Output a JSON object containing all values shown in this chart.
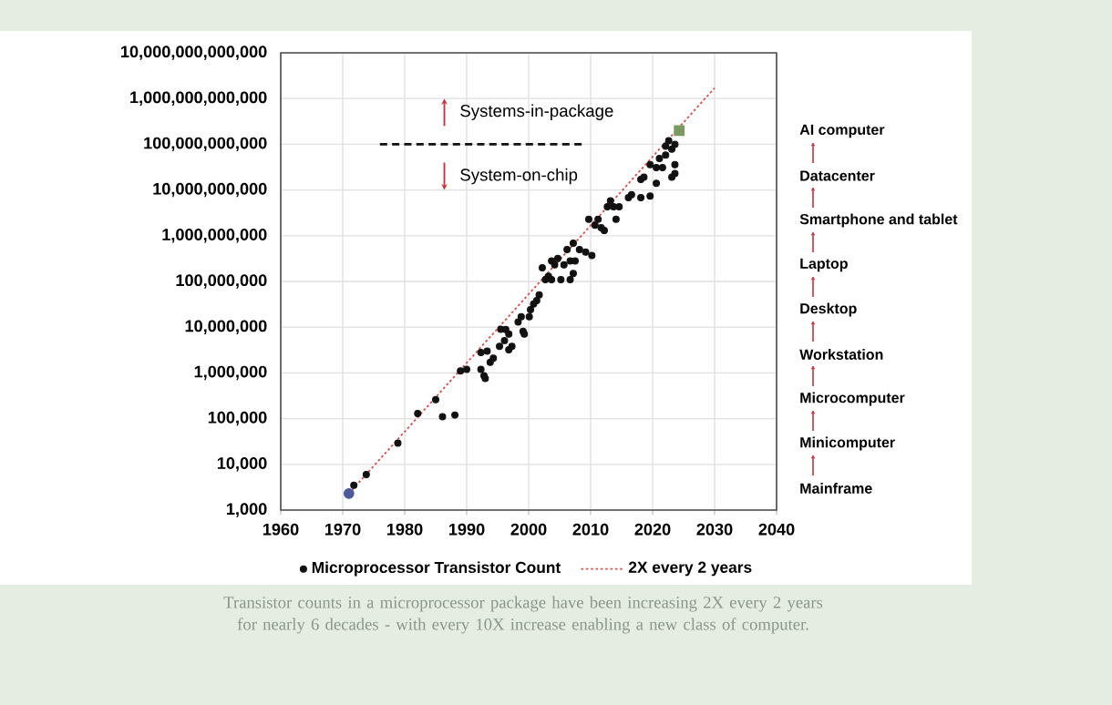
{
  "chart_data": {
    "type": "scatter",
    "log": "y",
    "grid": true,
    "legend": "bottom",
    "xlim": [
      1960,
      2040
    ],
    "ylim": [
      1000,
      10000000000000
    ],
    "xticks": [
      1960,
      1970,
      1980,
      1990,
      2000,
      2010,
      2020,
      2030,
      2040
    ],
    "yticks": [
      {
        "value": 1000,
        "label": "1,000"
      },
      {
        "value": 10000,
        "label": "10,000"
      },
      {
        "value": 100000,
        "label": "100,000"
      },
      {
        "value": 1000000,
        "label": "1,000,000"
      },
      {
        "value": 10000000,
        "label": "10,000,000"
      },
      {
        "value": 100000000,
        "label": "100,000,000"
      },
      {
        "value": 1000000000,
        "label": "1,000,000,000"
      },
      {
        "value": 10000000000,
        "label": "10,000,000,000"
      },
      {
        "value": 100000000000,
        "label": "100,000,000,000"
      },
      {
        "value": 1000000000000,
        "label": "1,000,000,000,000"
      },
      {
        "value": 10000000000000,
        "label": "10,000,000,000,000"
      }
    ],
    "series": [
      {
        "name": "Microprocessor Transistor Count",
        "color": "#111111",
        "marker": "circle",
        "x": [
          1971.8,
          1973.8,
          1978.9,
          1982.1,
          1985,
          1986.1,
          1988.1,
          1989,
          1990,
          1992.3,
          1992.8,
          1993,
          1992.3,
          1993.3,
          1993.8,
          1994.3,
          1995.3,
          1995.5,
          1996.3,
          1996.8,
          1997.3,
          1996.8,
          1996.1,
          1998.3,
          1999.1,
          1999.3,
          1998.8,
          2000.3,
          2000.8,
          2001.3,
          2000.1,
          2001.7,
          2002.2,
          2002.7,
          2003.2,
          2003.7,
          2003.7,
          2004.2,
          2004.7,
          2005.2,
          2005.7,
          2006.2,
          2006.7,
          2007.2,
          2006.7,
          2007.2,
          2007.5,
          2008.2,
          2009.2,
          2009.7,
          2010.2,
          2010.7,
          2011.2,
          2011.7,
          2012.2,
          2012.7,
          2013.2,
          2013.7,
          2014.1,
          2014.6,
          2016.1,
          2016.6,
          2018.1,
          2018.6,
          2018.1,
          2019.6,
          2019.6,
          2020.6,
          2020.6,
          2021.1,
          2021.6,
          2022.1,
          2022.1,
          2022.6,
          2023.1,
          2023.1,
          2023.6,
          2023.6,
          2023.6
        ],
        "values": [
          3500,
          6000,
          29000,
          130000,
          260000,
          110000,
          120000,
          1100000,
          1200000,
          1200000,
          870000,
          760000,
          2800000,
          3000000,
          1700000,
          2100000,
          3800000,
          9000000,
          8900000,
          7100000,
          3800000,
          3200000,
          5100000,
          13000000,
          8100000,
          7100000,
          17000000,
          24000000,
          32000000,
          38000000,
          17000000,
          51000000,
          200000000,
          110000000,
          130000000,
          280000000,
          110000000,
          230000000,
          320000000,
          110000000,
          230000000,
          500000000,
          280000000,
          690000000,
          110000000,
          150000000,
          280000000,
          500000000,
          440000000,
          2300000000,
          370000000,
          1700000000,
          2300000000,
          1500000000,
          1300000000,
          4300000000,
          5800000000,
          4300000000,
          2300000000,
          4300000000,
          6800000000,
          7900000000,
          17000000000,
          19000000000,
          6800000000,
          7400000000,
          36000000000,
          31000000000,
          14000000000,
          49000000000,
          31000000000,
          91000000000,
          58000000000,
          120000000000,
          78000000000,
          19000000000,
          36000000000,
          23000000000,
          100000000000
        ]
      },
      {
        "color": "#4a5a9a",
        "marker": "circle",
        "x": [
          1971
        ],
        "values": [
          2300
        ]
      },
      {
        "color": "#7a9a60",
        "marker": "square",
        "x": [
          2024.3
        ],
        "values": [
          200000000000
        ]
      },
      {
        "name": "2X every 2 years",
        "type": "line",
        "color": "#d9534f",
        "line_style": "dotted",
        "marker": "none",
        "x": [
          1971,
          2030
        ],
        "values": [
          2300,
          1700000000000
        ]
      },
      {
        "type": "line",
        "color": "#111111",
        "line_style": "dashed",
        "marker": "none",
        "x": [
          1976,
          2009
        ],
        "values": [
          100000000000,
          100000000000
        ]
      }
    ],
    "annotations": [
      "Systems-in-package",
      "System-on-chip",
      "AI computer",
      "Datacenter",
      "Smartphone and tablet",
      "Laptop",
      "Desktop",
      "Workstation",
      "Microcomputer",
      "Minicomputer",
      "Mainframe",
      "Transistor counts in a microprocessor package have been increasing 2X every 2 years for nearly 6 decades - with every 10X increase enabling a new class of computer."
    ]
  }
}
